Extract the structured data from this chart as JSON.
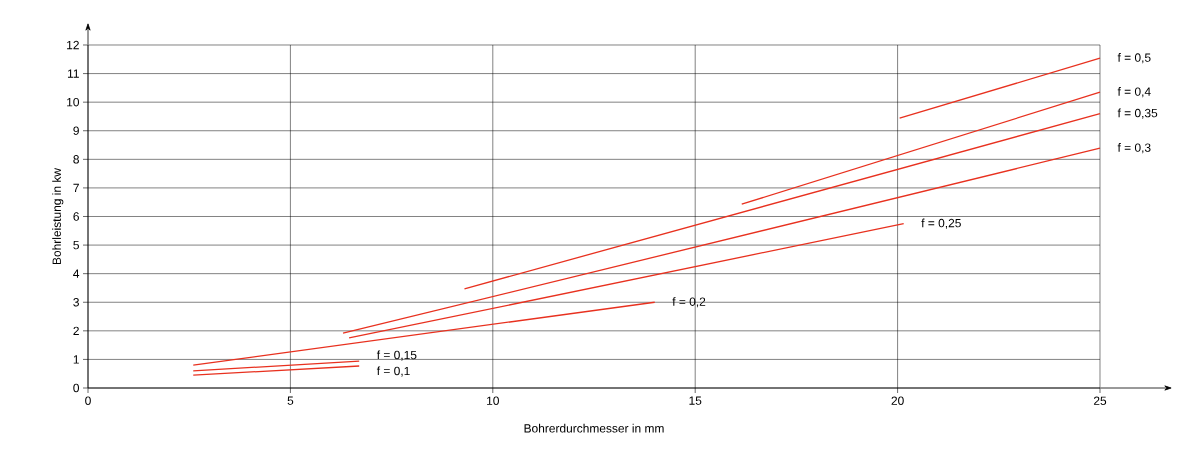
{
  "chart_data": {
    "type": "line",
    "xlabel": "Bohrerdurchmesser in mm",
    "ylabel": "Bohrleistung in kw",
    "xlim": [
      0,
      25
    ],
    "ylim": [
      0,
      12
    ],
    "xticks": [
      0,
      5,
      10,
      15,
      20,
      25
    ],
    "yticks": [
      0,
      1,
      2,
      3,
      4,
      5,
      6,
      7,
      8,
      9,
      10,
      11,
      12
    ],
    "grid": true,
    "series": [
      {
        "name": "f = 0,1",
        "color": "#e8311f",
        "x": [
          2.6,
          6.7
        ],
        "values": [
          0.45,
          0.77
        ]
      },
      {
        "name": "f = 0,15",
        "color": "#e8311f",
        "x": [
          2.6,
          6.7
        ],
        "values": [
          0.6,
          0.94
        ]
      },
      {
        "name": "f = 0,2",
        "color": "#e8311f",
        "x": [
          2.6,
          14.0
        ],
        "values": [
          0.8,
          3.0
        ]
      },
      {
        "name": "f = 0,25",
        "color": "#e8311f",
        "x": [
          6.45,
          20.15
        ],
        "values": [
          1.75,
          5.75
        ]
      },
      {
        "name": "f = 0,3",
        "color": "#e8311f",
        "x": [
          6.3,
          25
        ],
        "values": [
          1.92,
          8.39
        ]
      },
      {
        "name": "f = 0,35",
        "color": "#e8311f",
        "x": [
          9.3,
          25
        ],
        "values": [
          3.47,
          9.6
        ]
      },
      {
        "name": "f = 0,4",
        "color": "#e8311f",
        "x": [
          16.15,
          25
        ],
        "values": [
          6.43,
          10.35
        ]
      },
      {
        "name": "f = 0,5",
        "color": "#e8311f",
        "x": [
          20.05,
          25
        ],
        "values": [
          9.44,
          11.54
        ]
      }
    ]
  }
}
